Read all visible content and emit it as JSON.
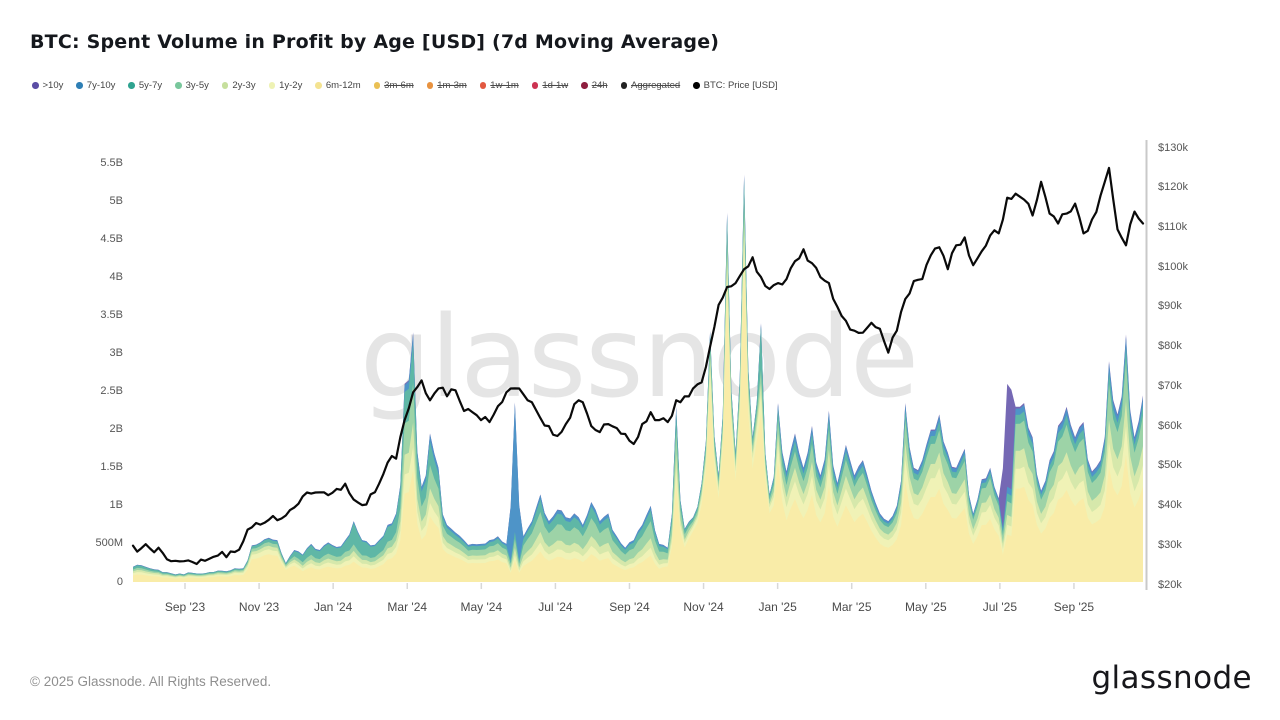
{
  "title": "BTC: Spent Volume in Profit by Age [USD] (7d Moving Average)",
  "watermark_text": "glassnode",
  "footer": {
    "copyright": "© 2025 Glassnode. All Rights Reserved.",
    "logo_text": "glassnode"
  },
  "legend": [
    {
      "label": ">10y",
      "color": "#5b4ea5",
      "struck": false
    },
    {
      "label": "7y-10y",
      "color": "#2e7fb5",
      "struck": false
    },
    {
      "label": "5y-7y",
      "color": "#2fa390",
      "struck": false
    },
    {
      "label": "3y-5y",
      "color": "#79c79c",
      "struck": false
    },
    {
      "label": "2y-3y",
      "color": "#c6df9d",
      "struck": false
    },
    {
      "label": "1y-2y",
      "color": "#eef2b4",
      "struck": false
    },
    {
      "label": "6m-12m",
      "color": "#f4e391",
      "struck": false
    },
    {
      "label": "3m-6m",
      "color": "#eac054",
      "struck": true
    },
    {
      "label": "1m-3m",
      "color": "#e8923f",
      "struck": true
    },
    {
      "label": "1w-1m",
      "color": "#e25840",
      "struck": true
    },
    {
      "label": "1d-1w",
      "color": "#cc3352",
      "struck": true
    },
    {
      "label": "24h",
      "color": "#8e1e3f",
      "struck": true
    },
    {
      "label": "Aggregated",
      "color": "#222222",
      "struck": true
    },
    {
      "label": "BTC: Price [USD]",
      "color": "#000000",
      "struck": false
    }
  ],
  "axes": {
    "left_ticks": [
      "0",
      "500M",
      "1B",
      "1.5B",
      "2B",
      "2.5B",
      "3B",
      "3.5B",
      "4B",
      "4.5B",
      "5B",
      "5.5B"
    ],
    "right_ticks": [
      "$20k",
      "$30k",
      "$40k",
      "$50k",
      "$60k",
      "$70k",
      "$80k",
      "$90k",
      "$100k",
      "$110k",
      "$120k",
      "$130k"
    ],
    "x_ticks": [
      "Sep '23",
      "Nov '23",
      "Jan '24",
      "Mar '24",
      "May '24",
      "Jul '24",
      "Sep '24",
      "Nov '24",
      "Jan '25",
      "Mar '25",
      "May '25",
      "Jul '25",
      "Sep '25"
    ]
  },
  "chart_data": {
    "type": "area",
    "title": "BTC: Spent Volume in Profit by Age [USD] (7d Moving Average)",
    "x_start": "2023-07-20",
    "x_end": "2025-10-27",
    "x_step_days": 7,
    "left_axis": {
      "unit": "USD",
      "min": 0,
      "max_billions": 5.5
    },
    "right_axis": {
      "unit": "USD",
      "min_k": 20,
      "max_k": 130
    },
    "stack_order_bottom_to_top": [
      "6m-12m",
      "1y-2y",
      "2y-3y",
      "3y-5y",
      "5y-7y",
      "7y-10y",
      ">10y"
    ],
    "band_colors": {
      "6m-12m": "#F9ECA8",
      "1y-2y": "#F0F2B6",
      "2y-3y": "#D6E8AB",
      "3y-5y": "#9DD3A7",
      "5y-7y": "#5FB7A6",
      "7y-10y": "#4E94C8",
      ">10y": "#7568B4"
    },
    "totals_busd": [
      0.2,
      0.22,
      0.18,
      0.16,
      0.13,
      0.1,
      0.1,
      0.12,
      0.11,
      0.13,
      0.15,
      0.14,
      0.18,
      0.18,
      0.48,
      0.52,
      0.58,
      0.55,
      0.25,
      0.42,
      0.36,
      0.5,
      0.42,
      0.52,
      0.46,
      0.55,
      0.8,
      0.55,
      0.48,
      0.55,
      0.75,
      0.9,
      2.6,
      3.28,
      1.25,
      1.95,
      1.5,
      0.75,
      0.65,
      0.55,
      0.5,
      0.5,
      0.55,
      0.6,
      0.5,
      2.36,
      0.6,
      0.8,
      1.15,
      0.8,
      0.95,
      0.85,
      0.9,
      0.75,
      1.05,
      0.8,
      0.9,
      0.6,
      0.45,
      0.55,
      0.75,
      1.0,
      0.5,
      0.45,
      2.3,
      0.7,
      0.85,
      1.3,
      3.3,
      1.4,
      4.85,
      1.7,
      5.35,
      1.9,
      3.4,
      1.15,
      2.35,
      1.45,
      1.95,
      1.5,
      2.05,
      1.4,
      2.25,
      1.3,
      1.8,
      1.4,
      1.6,
      1.2,
      0.9,
      0.8,
      1.0,
      2.35,
      1.5,
      1.6,
      2.0,
      2.2,
      1.7,
      1.5,
      1.75,
      0.9,
      1.35,
      1.5,
      1.1,
      2.6,
      2.3,
      2.35,
      1.9,
      1.2,
      1.6,
      2.05,
      2.3,
      1.9,
      2.1,
      1.45,
      1.6,
      2.9,
      2.2,
      3.25,
      1.9,
      2.45
    ],
    "band_share_keyframes": {
      "6m-12m": [
        [
          0,
          0.42
        ],
        [
          13,
          0.42
        ],
        [
          14,
          0.62
        ],
        [
          18,
          0.62
        ],
        [
          20,
          0.38
        ],
        [
          28,
          0.38
        ],
        [
          31,
          0.42
        ],
        [
          32,
          0.45
        ],
        [
          35,
          0.45
        ],
        [
          37,
          0.5
        ],
        [
          44,
          0.48
        ],
        [
          44.5,
          0.12
        ],
        [
          45.5,
          0.12
        ],
        [
          46,
          0.34
        ],
        [
          62,
          0.34
        ],
        [
          64,
          0.55
        ],
        [
          65,
          0.6
        ],
        [
          66,
          0.8
        ],
        [
          73.5,
          0.8
        ],
        [
          74,
          0.62
        ],
        [
          74.5,
          0.8
        ],
        [
          75,
          0.8
        ],
        [
          77,
          0.56
        ],
        [
          90,
          0.54
        ],
        [
          101,
          0.54
        ],
        [
          102,
          0.54
        ],
        [
          102.5,
          0.24
        ],
        [
          103.5,
          0.24
        ],
        [
          104,
          0.52
        ],
        [
          119,
          0.5
        ]
      ],
      "1y-2y": [
        [
          0,
          0.14
        ],
        [
          13,
          0.14
        ],
        [
          14,
          0.12
        ],
        [
          19,
          0.1
        ],
        [
          31,
          0.1
        ],
        [
          35,
          0.09
        ],
        [
          44,
          0.1
        ],
        [
          44.5,
          0.03
        ],
        [
          45.5,
          0.03
        ],
        [
          46,
          0.1
        ],
        [
          62,
          0.1
        ],
        [
          66,
          0.07
        ],
        [
          75,
          0.07
        ],
        [
          77,
          0.12
        ],
        [
          102,
          0.12
        ],
        [
          102.5,
          0.05
        ],
        [
          103.5,
          0.05
        ],
        [
          104,
          0.11
        ],
        [
          119,
          0.11
        ]
      ],
      "2y-3y": [
        [
          0,
          0.12
        ],
        [
          14,
          0.08
        ],
        [
          18,
          0.08
        ],
        [
          20,
          0.1
        ],
        [
          31,
          0.1
        ],
        [
          37,
          0.1
        ],
        [
          44,
          0.1
        ],
        [
          44.5,
          0.04
        ],
        [
          45.5,
          0.04
        ],
        [
          46,
          0.12
        ],
        [
          62,
          0.12
        ],
        [
          66,
          0.04
        ],
        [
          75,
          0.04
        ],
        [
          77,
          0.09
        ],
        [
          102,
          0.09
        ],
        [
          102.5,
          0.05
        ],
        [
          103.5,
          0.05
        ],
        [
          104,
          0.1
        ],
        [
          119,
          0.1
        ]
      ],
      "3y-5y": [
        [
          0,
          0.12
        ],
        [
          14,
          0.08
        ],
        [
          18,
          0.08
        ],
        [
          20,
          0.12
        ],
        [
          31,
          0.12
        ],
        [
          32,
          0.16
        ],
        [
          35,
          0.16
        ],
        [
          37,
          0.15
        ],
        [
          44,
          0.15
        ],
        [
          44.5,
          0.05
        ],
        [
          45.5,
          0.05
        ],
        [
          46,
          0.22
        ],
        [
          62,
          0.22
        ],
        [
          66,
          0.05
        ],
        [
          75,
          0.05
        ],
        [
          77,
          0.11
        ],
        [
          90,
          0.12
        ],
        [
          101,
          0.14
        ],
        [
          102,
          0.14
        ],
        [
          102.5,
          0.07
        ],
        [
          103.5,
          0.07
        ],
        [
          104,
          0.15
        ],
        [
          119,
          0.16
        ]
      ],
      "5y-7y": [
        [
          0,
          0.14
        ],
        [
          14,
          0.07
        ],
        [
          18,
          0.07
        ],
        [
          20,
          0.24
        ],
        [
          25,
          0.24
        ],
        [
          26,
          0.4
        ],
        [
          28,
          0.33
        ],
        [
          31,
          0.24
        ],
        [
          32,
          0.16
        ],
        [
          35,
          0.16
        ],
        [
          37,
          0.1
        ],
        [
          44,
          0.1
        ],
        [
          44.5,
          0.04
        ],
        [
          45.5,
          0.04
        ],
        [
          46,
          0.14
        ],
        [
          62,
          0.14
        ],
        [
          66,
          0.05
        ],
        [
          73.5,
          0.05
        ],
        [
          74,
          0.16
        ],
        [
          74.5,
          0.05
        ],
        [
          75,
          0.05
        ],
        [
          77,
          0.07
        ],
        [
          90,
          0.05
        ],
        [
          101,
          0.05
        ],
        [
          102,
          0.05
        ],
        [
          102.5,
          0.04
        ],
        [
          103.5,
          0.04
        ],
        [
          104,
          0.05
        ],
        [
          119,
          0.055
        ]
      ],
      "7y-10y": [
        [
          0,
          0.03
        ],
        [
          14,
          0.015
        ],
        [
          19,
          0.03
        ],
        [
          31,
          0.03
        ],
        [
          35,
          0.05
        ],
        [
          44,
          0.04
        ],
        [
          44.5,
          0.72
        ],
        [
          45.5,
          0.72
        ],
        [
          46,
          0.05
        ],
        [
          62,
          0.05
        ],
        [
          66,
          0.008
        ],
        [
          75,
          0.008
        ],
        [
          77,
          0.045
        ],
        [
          90,
          0.035
        ],
        [
          101,
          0.03
        ],
        [
          104,
          0.035
        ],
        [
          119,
          0.04
        ]
      ],
      ">10y": [
        [
          0,
          0.012
        ],
        [
          14,
          0.006
        ],
        [
          44,
          0.006
        ],
        [
          62,
          0.006
        ],
        [
          66,
          0.004
        ],
        [
          75,
          0.004
        ],
        [
          77,
          0.008
        ],
        [
          102,
          0.008
        ],
        [
          102.5,
          0.52
        ],
        [
          103.5,
          0.52
        ],
        [
          104,
          0.01
        ],
        [
          119,
          0.01
        ]
      ]
    },
    "price_kusd": [
      29.9,
      29.3,
      29.2,
      29.4,
      26.5,
      26.1,
      26.0,
      25.8,
      26.4,
      26.6,
      27.4,
      27.0,
      28.3,
      31.0,
      34.5,
      35.2,
      36.4,
      36.3,
      37.5,
      39.5,
      42.3,
      43.0,
      43.3,
      42.6,
      44.2,
      45.5,
      41.5,
      40.1,
      42.8,
      45.5,
      50.8,
      51.8,
      61.5,
      68.5,
      71.5,
      66.5,
      69.5,
      67.5,
      69.0,
      63.8,
      63.5,
      61.5,
      61.0,
      65.0,
      68.5,
      69.5,
      68.0,
      66.0,
      62.0,
      60.0,
      57.5,
      60.5,
      65.5,
      66.0,
      60.0,
      58.5,
      60.5,
      59.5,
      58.0,
      55.5,
      60.5,
      63.5,
      61.5,
      61.0,
      66.5,
      67.5,
      69.5,
      71.0,
      80.0,
      90.5,
      95.0,
      96.0,
      99.5,
      102.5,
      97.5,
      94.5,
      96.0,
      97.0,
      101.5,
      104.5,
      101.0,
      97.5,
      96.0,
      90.0,
      86.5,
      84.0,
      83.5,
      86.0,
      84.5,
      78.5,
      84.0,
      92.0,
      96.5,
      97.0,
      103.0,
      105.0,
      99.5,
      105.5,
      107.5,
      100.5,
      104.0,
      108.0,
      108.5,
      117.5,
      118.5,
      117.0,
      113.0,
      121.5,
      113.5,
      111.0,
      113.5,
      116.0,
      108.5,
      112.0,
      118.0,
      125.0,
      109.5,
      105.5,
      114.0,
      111.0
    ],
    "price_color": "#0a0a0a",
    "grid": false,
    "legend_position": "top"
  }
}
